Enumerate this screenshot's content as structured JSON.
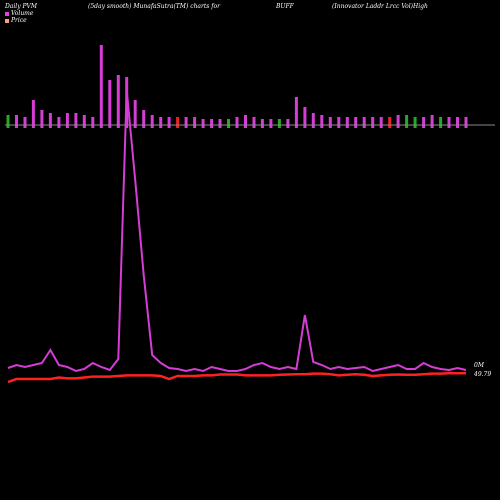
{
  "header": {
    "left": "Daily PVM",
    "mid": "(5day smooth) MunafaSutra(TM) charts for",
    "symbol": "BUFF",
    "right": "(Innovator Laddr Lrcc Vol)High"
  },
  "legend": [
    {
      "label": "Volume",
      "color": "#e040e0"
    },
    {
      "label": "Price",
      "color": "#f4a080"
    }
  ],
  "colors": {
    "volume_line": "#d63cd6",
    "price_line": "#ff2020",
    "bar_magenta": "#d63cd6",
    "bar_green": "#22aa22",
    "bar_red": "#ee2222",
    "baseline": "#888888"
  },
  "chart_data": {
    "type": "line",
    "bars": {
      "values": [
        10,
        10,
        8,
        25,
        15,
        12,
        8,
        12,
        12,
        10,
        8,
        80,
        45,
        50,
        48,
        25,
        15,
        10,
        8,
        8,
        8,
        8,
        8,
        6,
        6,
        6,
        6,
        8,
        10,
        8,
        6,
        6,
        6,
        6,
        28,
        18,
        12,
        10,
        8,
        8,
        8,
        8,
        8,
        8,
        8,
        8,
        10,
        10,
        8,
        8,
        10,
        8,
        8,
        8,
        8
      ],
      "directions": [
        "g",
        "p",
        "p",
        "p",
        "p",
        "p",
        "p",
        "p",
        "p",
        "p",
        "p",
        "p",
        "p",
        "p",
        "p",
        "p",
        "p",
        "p",
        "p",
        "p",
        "r",
        "p",
        "p",
        "p",
        "p",
        "p",
        "g",
        "p",
        "p",
        "p",
        "p",
        "p",
        "g",
        "p",
        "p",
        "p",
        "p",
        "p",
        "p",
        "p",
        "p",
        "p",
        "p",
        "p",
        "p",
        "r",
        "p",
        "g",
        "g",
        "p",
        "p",
        "g",
        "p",
        "p",
        "p"
      ]
    },
    "volume_line": [
      17,
      20,
      18,
      20,
      22,
      35,
      20,
      18,
      14,
      16,
      22,
      18,
      15,
      26,
      48,
      20,
      24,
      30,
      22,
      17,
      16,
      14,
      16,
      14,
      18,
      16,
      14,
      14,
      16,
      20,
      22,
      18,
      16,
      18,
      16,
      70,
      23,
      20,
      16,
      18,
      16,
      17,
      18,
      14,
      16,
      18,
      20,
      16,
      16,
      22,
      18,
      16,
      15,
      17,
      15
    ],
    "volume_peaks": [
      {
        "index": 14,
        "value": 295
      },
      {
        "index": 15,
        "value": 205
      },
      {
        "index": 16,
        "value": 110
      }
    ],
    "price_line": [
      49.5,
      49.6,
      49.6,
      49.6,
      49.6,
      49.6,
      49.65,
      49.62,
      49.62,
      49.65,
      49.68,
      49.68,
      49.68,
      49.7,
      49.72,
      49.72,
      49.72,
      49.72,
      49.7,
      49.6,
      49.7,
      49.7,
      49.7,
      49.72,
      49.72,
      49.75,
      49.75,
      49.75,
      49.72,
      49.72,
      49.72,
      49.72,
      49.74,
      49.75,
      49.76,
      49.76,
      49.78,
      49.78,
      49.76,
      49.72,
      49.74,
      49.76,
      49.74,
      49.7,
      49.72,
      49.74,
      49.75,
      49.74,
      49.74,
      49.76,
      49.78,
      49.78,
      49.79,
      49.79,
      49.79
    ],
    "labels": {
      "volume_last": "0M",
      "price_last": "49.79"
    }
  }
}
